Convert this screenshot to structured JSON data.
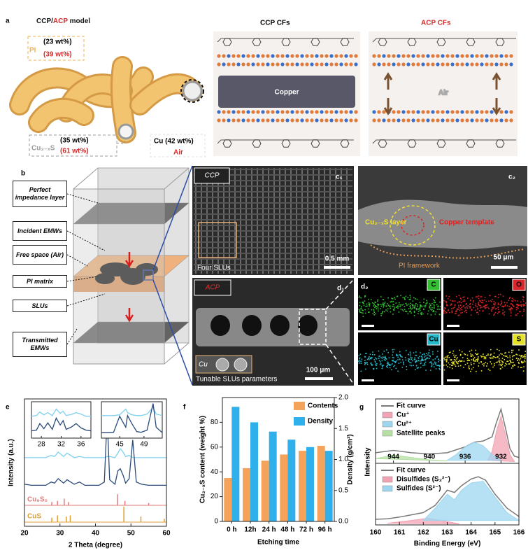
{
  "figure": {
    "a": {
      "label": "a",
      "title": [
        "CCP/",
        "ACP",
        " model"
      ],
      "pi": "PI",
      "pi_ccp": "(23 wt%)",
      "pi_acp": "(39 wt%)",
      "cus": "Cu₂₋ₓS",
      "cus_ccp": "(35 wt%)",
      "cus_acp": "(61 wt%)",
      "cu": "Cu (42 wt%)",
      "air": "Air",
      "ccp_title": "CCP CFs",
      "acp_title": "ACP CFs",
      "copper": "Copper",
      "air_gap": "Air"
    },
    "b": {
      "label": "b",
      "labels": [
        "Perfect impedance layer",
        "Incident EMWs",
        "Free space (Air)",
        "PI matrix",
        "SLUs",
        "Transmitted EMWs"
      ]
    },
    "c1": {
      "label": "c₁",
      "tag": "CCP",
      "note": "Four SLUs",
      "scale": "0.5 mm"
    },
    "c2": {
      "label": "c₂",
      "layer": "Cu₂₋ₓS layer",
      "template": "Copper template",
      "framework": "PI framework",
      "scale": "50 μm"
    },
    "d1": {
      "label": "d₁",
      "tag": "ACP",
      "note": "Tunable SLUs parameters",
      "cu": "Cu",
      "scale": "100 μm"
    },
    "d2": {
      "label": "d₂",
      "maps": [
        {
          "element": "C",
          "color": "#33c033"
        },
        {
          "element": "O",
          "color": "#d8262a"
        },
        {
          "element": "Cu",
          "color": "#25b9c9"
        },
        {
          "element": "S",
          "color": "#e6e22a"
        }
      ]
    }
  },
  "chart_data": [
    {
      "type": "line",
      "label": "e",
      "xlabel": "2 Theta (degree)",
      "ylabel": "Intensity (a.u.)",
      "xlim": [
        20,
        60
      ],
      "xticks": [
        20,
        30,
        40,
        50,
        60
      ],
      "ylim": [
        0,
        115
      ],
      "x": [
        20,
        22,
        24,
        26,
        27.5,
        28.5,
        29.5,
        31,
        32,
        33,
        34,
        35.5,
        37,
        39,
        41,
        42.5,
        43.3,
        44,
        45.5,
        46.3,
        47,
        47.8,
        48.5,
        49.5,
        50.5,
        51.5,
        53,
        55,
        57,
        60
      ],
      "series": [
        {
          "color": "#7fd0ee",
          "values": [
            62,
            62,
            62,
            62,
            64,
            63,
            67,
            63,
            66,
            64,
            62,
            63,
            62,
            62,
            62,
            62,
            63,
            63,
            62,
            66,
            70,
            67,
            63,
            64,
            62,
            62,
            62,
            62,
            62,
            62
          ]
        },
        {
          "color": "#2b4a78",
          "values": [
            38,
            37,
            37,
            37,
            40,
            39,
            43,
            39,
            42,
            40,
            38,
            40,
            37,
            37,
            37,
            40,
            99,
            42,
            38,
            50,
            52,
            46,
            39,
            43,
            78,
            40,
            38,
            37,
            37,
            37
          ]
        }
      ],
      "references": [
        {
          "name": "Cu₉S₅",
          "color": "#e27b7b",
          "x": [
            27.7,
            29.3,
            31.2,
            32.4,
            46.2,
            48.3,
            55
          ],
          "values": [
            3,
            4,
            6,
            3,
            10,
            4,
            2
          ]
        },
        {
          "name": "CuS",
          "color": "#e0a030",
          "x": [
            27.7,
            29.3,
            31.8,
            32.9,
            48,
            52.8,
            59.4
          ],
          "values": [
            4,
            6,
            5,
            6,
            14,
            5,
            3
          ]
        }
      ],
      "insets": [
        {
          "xlim": [
            26,
            38
          ],
          "xticks": [
            28,
            32,
            36
          ],
          "ylim": [
            0,
            100
          ],
          "x": [
            26,
            27,
            27.7,
            28.5,
            29.3,
            30.2,
            31,
            31.8,
            32.4,
            33,
            34,
            35,
            36,
            37,
            38
          ],
          "series": [
            {
              "color": "#7fd0ee",
              "values": [
                60,
                62,
                72,
                64,
                70,
                62,
                80,
                68,
                74,
                62,
                65,
                70,
                66,
                60,
                60
              ]
            },
            {
              "color": "#2b4a78",
              "values": [
                20,
                22,
                40,
                26,
                42,
                24,
                55,
                36,
                48,
                24,
                30,
                40,
                28,
                22,
                20
              ]
            }
          ]
        },
        {
          "xlim": [
            42,
            52
          ],
          "xticks": [
            45,
            49
          ],
          "ylim": [
            0,
            100
          ],
          "x": [
            42,
            43,
            44,
            45,
            46,
            46.3,
            47,
            47.8,
            48.5,
            49.5,
            50.5,
            51,
            52
          ],
          "series": [
            {
              "color": "#7fd0ee",
              "values": [
                62,
                62,
                62,
                64,
                80,
                70,
                64,
                62,
                62,
                66,
                85,
                66,
                62
              ]
            },
            {
              "color": "#2b4a78",
              "values": [
                15,
                15,
                16,
                60,
                30,
                62,
                40,
                18,
                16,
                22,
                95,
                30,
                15
              ]
            }
          ]
        }
      ]
    },
    {
      "type": "bar",
      "label": "f",
      "xlabel": "Etching time",
      "ylabel": "Cu₂₋ₓS content (weight %)",
      "y2label": "Density (g/cm³)",
      "categories": [
        "0 h",
        "12h",
        "24 h",
        "48 h",
        "72 h",
        "96 h"
      ],
      "series": [
        {
          "name": "Contents",
          "color": "#f5a25a",
          "values": [
            35,
            43,
            49,
            54,
            57,
            61
          ]
        },
        {
          "name": "Density",
          "color": "#2fb0ea",
          "values": [
            1.85,
            1.6,
            1.45,
            1.32,
            1.2,
            1.14
          ],
          "axis": "y2"
        }
      ],
      "ylim": [
        0,
        100
      ],
      "yticks": [
        0,
        20,
        40,
        60,
        80
      ],
      "y2lim": [
        0,
        2
      ],
      "y2ticks": [
        {
          "value": 0,
          "label": "0.0"
        },
        {
          "value": 0.5,
          "label": "0.5"
        },
        {
          "value": 1,
          "label": "1.0"
        },
        {
          "value": 1.5,
          "label": "1.5"
        },
        {
          "value": 2,
          "label": "2.0"
        }
      ]
    },
    {
      "type": "line",
      "label": "g",
      "xlabel": "Binding Energy (eV)",
      "ylabel": "Intensity",
      "subplots": [
        {
          "xlim": [
            946,
            930
          ],
          "xticks": [
            944,
            940,
            936,
            932
          ],
          "ylim": [
            0,
            100
          ],
          "series": [
            {
              "name": "Fit curve",
              "color": "#7a7a7a",
              "x": [
                946,
                944,
                942,
                940,
                938,
                936,
                935,
                934,
                933,
                932.5,
                932,
                931.5,
                931,
                930.5,
                930
              ],
              "values": [
                18,
                22,
                18,
                16,
                18,
                28,
                36,
                38,
                45,
                70,
                92,
                60,
                25,
                12,
                10
              ]
            },
            {
              "name": "Cu⁺",
              "color": "#f2a3b3",
              "x": [
                933.5,
                933,
                932.5,
                932,
                931.5,
                931,
                930.5
              ],
              "values": [
                5,
                20,
                55,
                80,
                48,
                15,
                3
              ]
            },
            {
              "name": "Cu²⁺",
              "color": "#9dd6f0",
              "x": [
                938,
                937,
                936,
                935,
                934,
                933,
                932
              ],
              "values": [
                5,
                15,
                28,
                36,
                30,
                15,
                5
              ]
            },
            {
              "name": "Satellite peaks",
              "color": "#b5dfa3",
              "x": [
                946,
                944,
                942,
                940,
                938
              ],
              "values": [
                8,
                14,
                10,
                6,
                4
              ]
            }
          ]
        },
        {
          "xlim": [
            160,
            166
          ],
          "xticks": [
            160,
            161,
            162,
            163,
            164,
            165,
            166
          ],
          "ylim": [
            0,
            100
          ],
          "series": [
            {
              "name": "Fit curve",
              "color": "#7a7a7a",
              "x": [
                160,
                160.5,
                161,
                161.5,
                162,
                162.5,
                163,
                163.3,
                163.6,
                164,
                164.3,
                164.6,
                165,
                165.5,
                166
              ],
              "values": [
                10,
                11,
                14,
                18,
                22,
                35,
                62,
                58,
                70,
                82,
                86,
                80,
                55,
                30,
                15
              ]
            },
            {
              "name": "Disulfides (S₂²⁻)",
              "color": "#f2a3b3",
              "x": [
                160.5,
                161.5,
                162.2,
                163,
                163.5
              ],
              "values": [
                3,
                8,
                12,
                6,
                2
              ]
            },
            {
              "name": "Sulfides (S²⁻)",
              "color": "#9dd6f0",
              "x": [
                162,
                162.5,
                163,
                163.3,
                163.6,
                164,
                164.5,
                165,
                165.5,
                166
              ],
              "values": [
                8,
                30,
                55,
                45,
                62,
                75,
                78,
                50,
                22,
                8
              ]
            }
          ]
        }
      ]
    }
  ]
}
